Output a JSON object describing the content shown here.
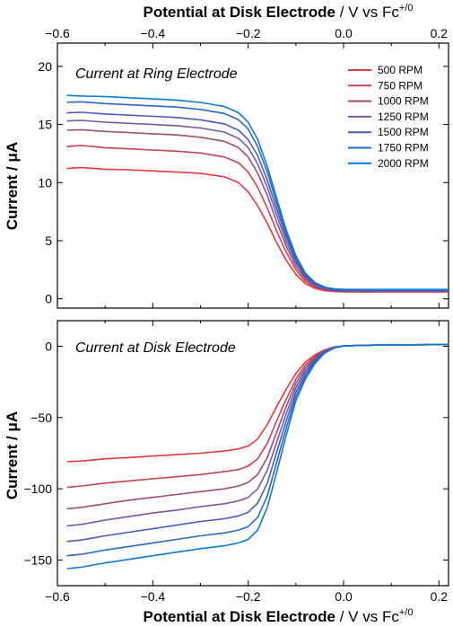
{
  "chart_data": [
    {
      "type": "line",
      "title": "Current at Ring Electrode",
      "xlabel": "Potential at Disk Electrode / V vs Fc+/0",
      "xlabel_main": "Potential at Disk Electrode",
      "xlabel_unit": "/ V vs Fc",
      "xlabel_sup": "+/0",
      "ylabel": "Current / μA",
      "xlim": [
        -0.6,
        0.22
      ],
      "ylim": [
        -0.8,
        22
      ],
      "xticks": [
        -0.6,
        -0.4,
        -0.2,
        0.0,
        0.2
      ],
      "xtick_labels": [
        "−0.6",
        "−0.4",
        "−0.2",
        "0.0",
        "0.2"
      ],
      "yticks": [
        0,
        5,
        10,
        15,
        20
      ],
      "ytick_labels": [
        "0",
        "5",
        "10",
        "15",
        "20"
      ],
      "legend_position": "top-right",
      "x": [
        -0.58,
        -0.55,
        -0.5,
        -0.45,
        -0.4,
        -0.35,
        -0.3,
        -0.25,
        -0.22,
        -0.2,
        -0.18,
        -0.16,
        -0.14,
        -0.12,
        -0.1,
        -0.08,
        -0.06,
        -0.04,
        -0.02,
        0.0,
        0.05,
        0.1,
        0.15,
        0.22
      ],
      "series": [
        {
          "name": "500 RPM",
          "color": "#e8383a",
          "values": [
            11.2,
            11.3,
            11.15,
            11.1,
            11.0,
            10.9,
            10.8,
            10.5,
            10.0,
            9.2,
            8.0,
            6.5,
            4.8,
            3.3,
            2.1,
            1.3,
            0.9,
            0.7,
            0.62,
            0.6,
            0.58,
            0.58,
            0.58,
            0.58
          ]
        },
        {
          "name": "750 RPM",
          "color": "#c8424f",
          "values": [
            13.1,
            13.2,
            13.0,
            12.9,
            12.8,
            12.7,
            12.55,
            12.2,
            11.7,
            10.9,
            9.6,
            7.8,
            5.8,
            4.0,
            2.5,
            1.5,
            1.0,
            0.75,
            0.66,
            0.63,
            0.62,
            0.62,
            0.62,
            0.62
          ]
        },
        {
          "name": "1000 RPM",
          "color": "#a04a74",
          "values": [
            14.5,
            14.55,
            14.4,
            14.3,
            14.2,
            14.1,
            13.9,
            13.55,
            13.0,
            12.2,
            10.8,
            8.9,
            6.6,
            4.5,
            2.8,
            1.7,
            1.1,
            0.82,
            0.7,
            0.66,
            0.65,
            0.65,
            0.65,
            0.65
          ]
        },
        {
          "name": "1250 RPM",
          "color": "#7a55a2",
          "values": [
            15.3,
            15.35,
            15.2,
            15.1,
            15.0,
            14.9,
            14.7,
            14.35,
            13.8,
            13.0,
            11.6,
            9.6,
            7.2,
            4.9,
            3.1,
            1.85,
            1.2,
            0.88,
            0.74,
            0.7,
            0.69,
            0.69,
            0.69,
            0.69
          ]
        },
        {
          "name": "1500 RPM",
          "color": "#4a5bbf",
          "values": [
            16.0,
            16.05,
            15.9,
            15.8,
            15.7,
            15.6,
            15.4,
            15.05,
            14.5,
            13.7,
            12.3,
            10.2,
            7.7,
            5.3,
            3.3,
            2.0,
            1.3,
            0.94,
            0.78,
            0.74,
            0.73,
            0.73,
            0.73,
            0.73
          ]
        },
        {
          "name": "1750 RPM",
          "color": "#2568cc",
          "values": [
            16.9,
            16.95,
            16.8,
            16.7,
            16.6,
            16.5,
            16.3,
            15.95,
            15.4,
            14.6,
            13.1,
            10.9,
            8.2,
            5.6,
            3.5,
            2.1,
            1.35,
            0.98,
            0.82,
            0.78,
            0.77,
            0.77,
            0.77,
            0.77
          ]
        },
        {
          "name": "2000 RPM",
          "color": "#0a7ad8",
          "values": [
            17.5,
            17.45,
            17.4,
            17.3,
            17.2,
            17.1,
            16.9,
            16.55,
            16.0,
            15.2,
            13.7,
            11.4,
            8.6,
            5.9,
            3.7,
            2.2,
            1.4,
            1.02,
            0.86,
            0.82,
            0.81,
            0.81,
            0.81,
            0.81
          ]
        }
      ],
      "legend_entries": [
        "500 RPM",
        "750 RPM",
        "1000 RPM",
        "1250 RPM",
        "1500 RPM",
        "1750 RPM",
        "2000 RPM"
      ]
    },
    {
      "type": "line",
      "title": "Current at Disk Electrode",
      "xlabel": "Potential at Disk Electrode / V vs Fc+/0",
      "xlabel_main": "Potential at Disk Electrode",
      "xlabel_unit": "/ V vs Fc",
      "xlabel_sup": "+/0",
      "ylabel": "Current / μA",
      "xlim": [
        -0.6,
        0.22
      ],
      "ylim": [
        -168,
        18
      ],
      "xticks": [
        -0.6,
        -0.4,
        -0.2,
        0.0,
        0.2
      ],
      "xtick_labels": [
        "−0.6",
        "−0.4",
        "−0.2",
        "0.0",
        "0.2"
      ],
      "yticks": [
        -150,
        -100,
        -50,
        0
      ],
      "ytick_labels": [
        "−150",
        "−100",
        "−50",
        "0"
      ],
      "x": [
        -0.58,
        -0.55,
        -0.5,
        -0.45,
        -0.4,
        -0.35,
        -0.3,
        -0.25,
        -0.22,
        -0.2,
        -0.18,
        -0.16,
        -0.14,
        -0.12,
        -0.1,
        -0.08,
        -0.06,
        -0.04,
        -0.02,
        0.0,
        0.05,
        0.1,
        0.15,
        0.22
      ],
      "series": [
        {
          "name": "500 RPM",
          "color": "#e8383a",
          "values": [
            -81,
            -80.5,
            -79,
            -78,
            -77,
            -76,
            -75,
            -73.5,
            -72,
            -70,
            -65,
            -55,
            -42,
            -30,
            -19,
            -11,
            -6,
            -2.5,
            -0.5,
            0.3,
            0.8,
            1.0,
            1.1,
            1.2
          ]
        },
        {
          "name": "750 RPM",
          "color": "#c8424f",
          "values": [
            -99,
            -98,
            -96,
            -94.5,
            -93,
            -91.5,
            -90,
            -88,
            -86.5,
            -84,
            -79,
            -68,
            -52,
            -37,
            -23,
            -13,
            -7,
            -3,
            -0.7,
            0.3,
            0.8,
            1.0,
            1.1,
            1.2
          ]
        },
        {
          "name": "1000 RPM",
          "color": "#a04a74",
          "values": [
            -114,
            -113,
            -110.5,
            -108,
            -106,
            -104,
            -102,
            -100,
            -98,
            -95.5,
            -90,
            -78,
            -60,
            -42,
            -26,
            -15,
            -8,
            -3.3,
            -0.8,
            0.3,
            0.8,
            1.0,
            1.1,
            1.2
          ]
        },
        {
          "name": "1250 RPM",
          "color": "#7a55a2",
          "values": [
            -126,
            -125,
            -122,
            -119.5,
            -117,
            -115,
            -112.5,
            -110.5,
            -108.5,
            -106,
            -100,
            -87,
            -67,
            -47,
            -29,
            -17,
            -9,
            -3.7,
            -0.9,
            0.3,
            0.8,
            1.0,
            1.1,
            1.2
          ]
        },
        {
          "name": "1500 RPM",
          "color": "#4a5bbf",
          "values": [
            -137,
            -136,
            -133,
            -130.5,
            -128,
            -125.5,
            -123,
            -121,
            -119,
            -116.5,
            -110,
            -96,
            -74,
            -52,
            -32,
            -19,
            -10,
            -4,
            -1,
            0.3,
            0.8,
            1.0,
            1.1,
            1.2
          ]
        },
        {
          "name": "1750 RPM",
          "color": "#2568cc",
          "values": [
            -147,
            -146,
            -143,
            -140.5,
            -138,
            -135.5,
            -133,
            -131,
            -129,
            -126.5,
            -120,
            -105,
            -81,
            -57,
            -35,
            -21,
            -11,
            -4.4,
            -1.1,
            0.3,
            0.8,
            1.0,
            1.1,
            1.2
          ]
        },
        {
          "name": "2000 RPM",
          "color": "#0a7ad8",
          "values": [
            -156,
            -155,
            -152,
            -149.5,
            -147,
            -144.5,
            -142,
            -140,
            -138,
            -135.5,
            -129,
            -113,
            -88,
            -62,
            -38,
            -23,
            -12,
            -4.8,
            -1.2,
            0.3,
            0.8,
            1.0,
            1.1,
            1.2
          ]
        }
      ]
    }
  ]
}
